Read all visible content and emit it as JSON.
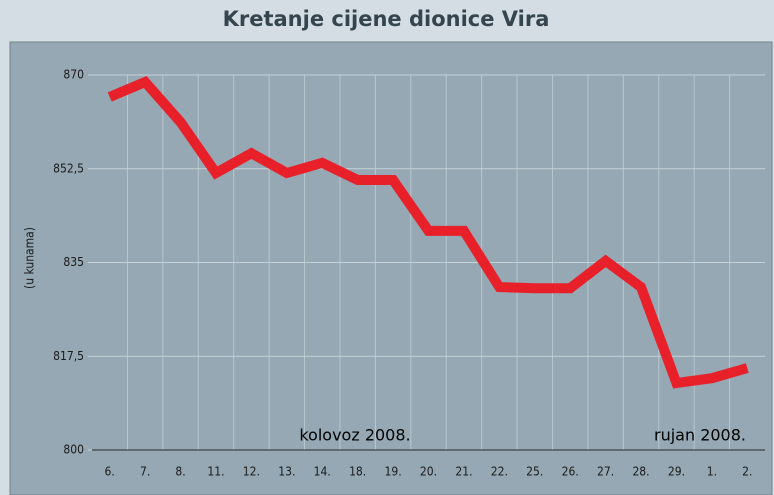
{
  "chart_data": {
    "type": "line",
    "title": "Kretanje cijene dionice Vira",
    "y_label": "(u kunama)",
    "annotations": [
      "kolovoz 2008.",
      "rujan 2008."
    ],
    "categories": [
      "6.",
      "7.",
      "8.",
      "11.",
      "12.",
      "13.",
      "14.",
      "18.",
      "19.",
      "20.",
      "21.",
      "22.",
      "25.",
      "26.",
      "27.",
      "28.",
      "29.",
      "1.",
      "2."
    ],
    "values": [
      865.9,
      868.7,
      861.2,
      851.7,
      855.4,
      851.7,
      853.6,
      850.4,
      850.4,
      840.9,
      840.9,
      830.4,
      830.2,
      830.2,
      835.3,
      830.4,
      812.5,
      813.4,
      815.3
    ],
    "color": "#e8202a",
    "ylim": [
      800,
      870
    ],
    "yticks": [
      800,
      {
        "value": 817.5,
        "label": "817,5"
      },
      835,
      {
        "value": 852.5,
        "label": "852,5"
      },
      870
    ],
    "grid": true
  }
}
